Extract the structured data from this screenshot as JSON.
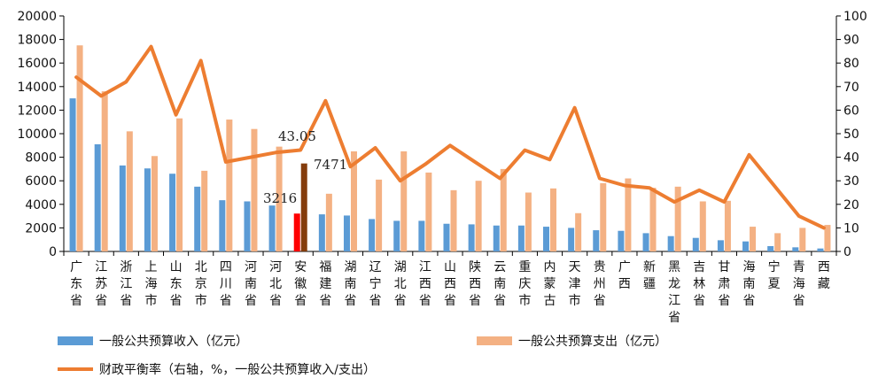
{
  "chart_data": {
    "type": "bar",
    "title": "",
    "categories": [
      "广东省",
      "江苏省",
      "浙江省",
      "上海市",
      "山东省",
      "北京市",
      "四川省",
      "河南省",
      "河北省",
      "安徽省",
      "福建省",
      "湖南省",
      "辽宁省",
      "湖北省",
      "江西省",
      "山西省",
      "陕西省",
      "云南省",
      "重庆市",
      "内蒙古",
      "天津市",
      "贵州省",
      "广西",
      "新疆",
      "黑龙江省",
      "吉林省",
      "甘肃省",
      "海南省",
      "宁夏",
      "青海省",
      "西藏"
    ],
    "y_left": {
      "min": 0,
      "max": 20000,
      "step": 2000,
      "ticks": [
        "0",
        "2000",
        "4000",
        "6000",
        "8000",
        "10000",
        "12000",
        "14000",
        "16000",
        "18000",
        "20000"
      ]
    },
    "y_right": {
      "min": 0,
      "max": 100,
      "step": 10,
      "ticks": [
        "0",
        "10",
        "20",
        "30",
        "40",
        "50",
        "60",
        "70",
        "80",
        "90",
        "100"
      ]
    },
    "series": [
      {
        "name": "一般公共预算收入（亿元）",
        "type": "bar",
        "axis": "left",
        "color": "#5B9BD5",
        "values": [
          13000,
          9100,
          7300,
          7050,
          6600,
          5500,
          4350,
          4250,
          3900,
          3216,
          3150,
          3050,
          2750,
          2600,
          2600,
          2350,
          2300,
          2200,
          2200,
          2100,
          2000,
          1800,
          1750,
          1550,
          1300,
          1150,
          950,
          850,
          450,
          350,
          250
        ]
      },
      {
        "name": "一般公共预算支出（亿元）",
        "type": "bar",
        "axis": "left",
        "color": "#F4B183",
        "values": [
          17500,
          13600,
          10200,
          8100,
          11300,
          6850,
          11200,
          10400,
          8900,
          7471,
          4900,
          8500,
          6100,
          8500,
          6700,
          5200,
          6000,
          7000,
          5000,
          5350,
          3250,
          5800,
          6200,
          5400,
          5500,
          4250,
          4300,
          2100,
          1550,
          2000,
          2250
        ]
      },
      {
        "name": "财政平衡率（右轴，%，一般公共预算收入/支出）",
        "type": "line",
        "axis": "right",
        "color": "#ED7D31",
        "values": [
          74,
          66,
          72,
          87,
          58,
          81,
          38,
          40,
          42,
          43.05,
          64,
          36,
          44,
          30,
          37,
          45,
          38,
          31,
          43,
          39,
          61,
          31,
          28,
          27,
          21,
          26,
          21,
          41,
          28,
          15,
          10
        ]
      }
    ],
    "highlight": {
      "category": "安徽省",
      "income_color": "#FF0000",
      "expense_color": "#843C0C"
    },
    "annotations": {
      "ratio_label": "43.05",
      "expense_label": "7471",
      "income_label": "3216"
    },
    "legend": {
      "position": "bottom",
      "income": "一般公共预算收入（亿元）",
      "expense": "一般公共预算支出（亿元）",
      "ratio": "财政平衡率（右轴，%，一般公共预算收入/支出）"
    },
    "grid": false
  }
}
